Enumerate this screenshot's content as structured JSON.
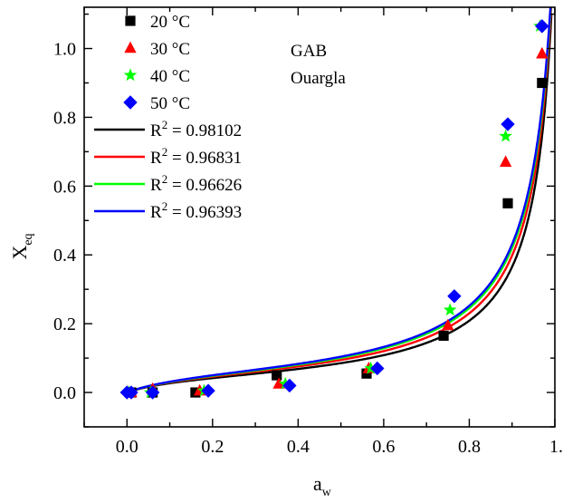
{
  "chart_data": {
    "type": "scatter",
    "xlabel": "a",
    "xlabel_sub": "w",
    "ylabel": "X",
    "ylabel_sub": "eq",
    "xlim": [
      -0.1,
      1.0
    ],
    "ylim": [
      -0.1,
      1.12
    ],
    "xticks": [
      0.0,
      0.2,
      0.4,
      0.6,
      0.8
    ],
    "xtick_labels": [
      "0.0",
      "0.2",
      "0.4",
      "0.6",
      "0.8"
    ],
    "xtick_label_clipped": "1.",
    "yticks": [
      0.0,
      0.2,
      0.4,
      0.6,
      0.8,
      1.0
    ],
    "ytick_labels": [
      "0.0",
      "0.2",
      "0.4",
      "0.6",
      "0.8",
      "1.0"
    ],
    "grid": false,
    "legend_position": "top-left",
    "annotations": [
      "GAB",
      "Ouargla"
    ],
    "series": [
      {
        "name": "20 °C",
        "marker": "square",
        "color": "#000000",
        "points": [
          [
            0.01,
            0.0
          ],
          [
            0.06,
            0.0
          ],
          [
            0.16,
            0.0
          ],
          [
            0.35,
            0.05
          ],
          [
            0.56,
            0.055
          ],
          [
            0.74,
            0.165
          ],
          [
            0.89,
            0.55
          ],
          [
            0.97,
            0.9
          ]
        ]
      },
      {
        "name": "30 °C",
        "marker": "triangle",
        "color": "#ff0000",
        "points": [
          [
            0.01,
            0.0
          ],
          [
            0.06,
            0.01
          ],
          [
            0.17,
            0.005
          ],
          [
            0.355,
            0.025
          ],
          [
            0.565,
            0.07
          ],
          [
            0.75,
            0.195
          ],
          [
            0.885,
            0.67
          ],
          [
            0.97,
            0.985
          ]
        ]
      },
      {
        "name": "40 °C",
        "marker": "star",
        "color": "#00ff00",
        "points": [
          [
            0.005,
            0.0
          ],
          [
            0.055,
            0.0
          ],
          [
            0.18,
            0.005
          ],
          [
            0.37,
            0.025
          ],
          [
            0.57,
            0.07
          ],
          [
            0.755,
            0.24
          ],
          [
            0.885,
            0.745
          ],
          [
            0.965,
            1.065
          ]
        ]
      },
      {
        "name": "50 °C",
        "marker": "diamond",
        "color": "#0000ff",
        "points": [
          [
            0.0,
            0.0
          ],
          [
            0.01,
            0.0
          ],
          [
            0.06,
            0.0
          ],
          [
            0.19,
            0.005
          ],
          [
            0.38,
            0.02
          ],
          [
            0.585,
            0.07
          ],
          [
            0.765,
            0.28
          ],
          [
            0.89,
            0.78
          ],
          [
            0.97,
            1.065
          ]
        ]
      }
    ],
    "fits": [
      {
        "label": "R",
        "sup": "2",
        "value": " = 0.98102",
        "color": "#000000",
        "xm": 0.0495,
        "c": 9.0,
        "k": 0.963
      },
      {
        "label": "R",
        "sup": "2",
        "value": " = 0.96831",
        "color": "#ff0000",
        "xm": 0.0555,
        "c": 8.5,
        "k": 0.959
      },
      {
        "label": "R",
        "sup": "2",
        "value": " = 0.96626",
        "color": "#00ff00",
        "xm": 0.0599,
        "c": 8.0,
        "k": 0.956
      },
      {
        "label": "R",
        "sup": "2",
        "value": " = 0.96393",
        "color": "#0000ff",
        "xm": 0.0618,
        "c": 8.0,
        "k": 0.955
      }
    ]
  }
}
